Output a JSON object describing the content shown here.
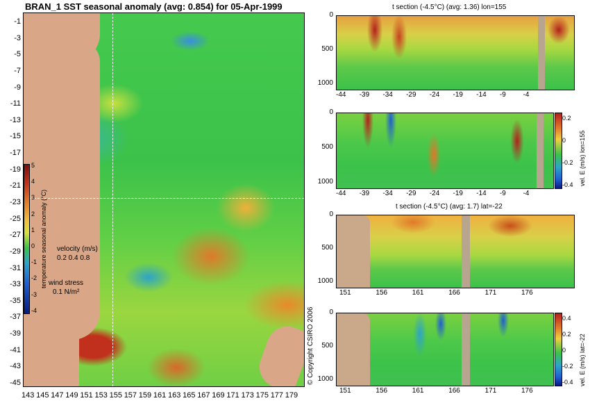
{
  "main_map": {
    "title": "BRAN_1 SST seasonal anomaly (avg: 0.854) for 05-Apr-1999",
    "y_ticks": [
      "-1",
      "-3",
      "-5",
      "-7",
      "-9",
      "-11",
      "-13",
      "-15",
      "-17",
      "-19",
      "-21",
      "-23",
      "-25",
      "-27",
      "-29",
      "-31",
      "-33",
      "-35",
      "-37",
      "-39",
      "-41",
      "-43",
      "-45"
    ],
    "x_ticks": [
      "143",
      "145",
      "147",
      "149",
      "151",
      "153",
      "155",
      "157",
      "159",
      "161",
      "163",
      "165",
      "167",
      "169",
      "171",
      "173",
      "175",
      "177",
      "179"
    ],
    "colorbar": {
      "ticks": [
        "5",
        "4",
        "3",
        "2",
        "1",
        "0",
        "-1",
        "-2",
        "-3",
        "-4"
      ],
      "label": "temperature seasonal anomaly (°C)",
      "velocity_label": "velocity (m/s)",
      "velocity_values": "0.2 0.4 0.8",
      "wind_label": "wind stress",
      "wind_value": "0.1 N/m²"
    },
    "copyright": "© Copyright CSIRO 2006"
  },
  "panels": [
    {
      "title": "t section (-4.5°C) (avg: 1.36) lon=155",
      "y_ticks": [
        "0",
        "500",
        "1000"
      ],
      "x_ticks": [
        "-44",
        "-39",
        "-34",
        "-29",
        "-24",
        "-19",
        "-14",
        "-9",
        "-4"
      ]
    },
    {
      "title": "",
      "y_ticks": [
        "0",
        "500",
        "1000"
      ],
      "x_ticks": [
        "-44",
        "-39",
        "-34",
        "-29",
        "-24",
        "-19",
        "-14",
        "-9",
        "-4"
      ],
      "colorbar_ticks": [
        "0.2",
        "0",
        "-0.2",
        "-0.4"
      ],
      "colorbar_label": "vel. E (m/s) lon=155"
    },
    {
      "title": "t section (-4.5°C) (avg: 1.7) lat=-22",
      "y_ticks": [
        "0",
        "500",
        "1000"
      ],
      "x_ticks": [
        "151",
        "156",
        "161",
        "166",
        "171",
        "176"
      ]
    },
    {
      "title": "",
      "y_ticks": [
        "0",
        "500",
        "1000"
      ],
      "x_ticks": [
        "151",
        "156",
        "161",
        "166",
        "171",
        "176"
      ],
      "colorbar_ticks": [
        "0.4",
        "0.2",
        "0",
        "-0.2",
        "-0.4"
      ],
      "colorbar_label": "vel. E (m/s) lat=-22"
    }
  ],
  "colors": {
    "ocean_green": "#3cc24a",
    "land": "#d9a788",
    "warm": "#e0782a",
    "hot": "#b3201c",
    "cool": "#2a8fd8"
  }
}
